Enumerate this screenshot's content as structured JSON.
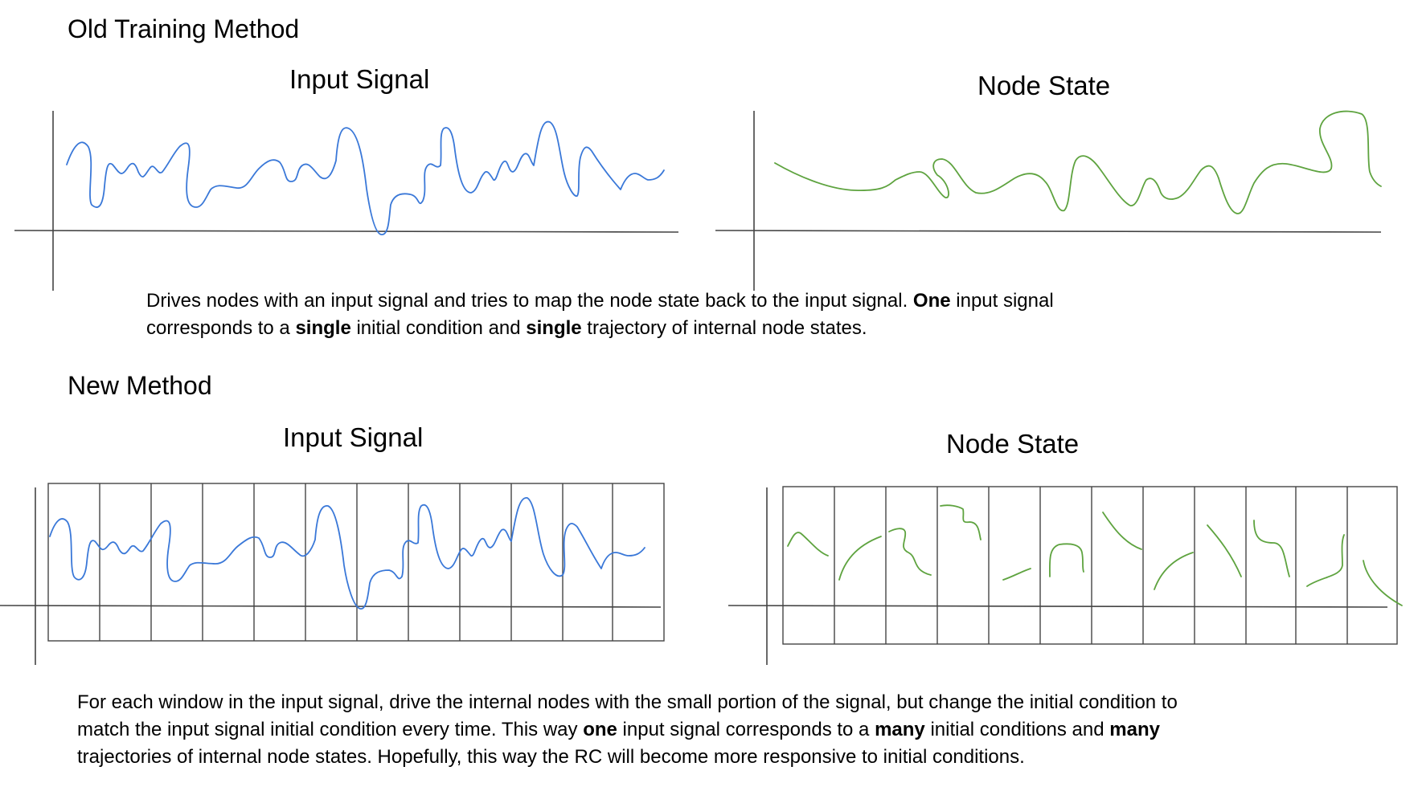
{
  "old_method": {
    "heading": "Old Training Method",
    "input_panel_title": "Input Signal",
    "node_panel_title": "Node State",
    "caption_lines": [
      [
        {
          "text": "Drives nodes with an input signal and tries to map the node state back to the input signal. ",
          "bold": false
        },
        {
          "text": "One",
          "bold": true
        },
        {
          "text": " input signal",
          "bold": false
        }
      ],
      [
        {
          "text": "corresponds to a ",
          "bold": false
        },
        {
          "text": "single",
          "bold": true
        },
        {
          "text": " initial condition and ",
          "bold": false
        },
        {
          "text": "single",
          "bold": true
        },
        {
          "text": " trajectory of internal node states.",
          "bold": false
        }
      ]
    ]
  },
  "new_method": {
    "heading": "New Method",
    "input_panel_title": "Input Signal",
    "node_panel_title": "Node State",
    "caption_lines": [
      [
        {
          "text": "For each window in the input signal, drive the internal nodes with the small portion of the signal, but change the initial condition to",
          "bold": false
        }
      ],
      [
        {
          "text": "match the input signal initial condition every time. This way ",
          "bold": false
        },
        {
          "text": "one",
          "bold": true
        },
        {
          "text": " input signal corresponds to a ",
          "bold": false
        },
        {
          "text": "many",
          "bold": true
        },
        {
          "text": " initial conditions and ",
          "bold": false
        },
        {
          "text": "many",
          "bold": true
        }
      ],
      [
        {
          "text": "trajectories of internal node states. Hopefully, this way the RC will become more responsive to initial conditions.",
          "bold": false
        }
      ]
    ]
  },
  "style": {
    "input_signal_color": "#3a78d8",
    "node_state_color": "#5ea33f",
    "axis_color": "#444444",
    "grid_color": "#444444"
  }
}
